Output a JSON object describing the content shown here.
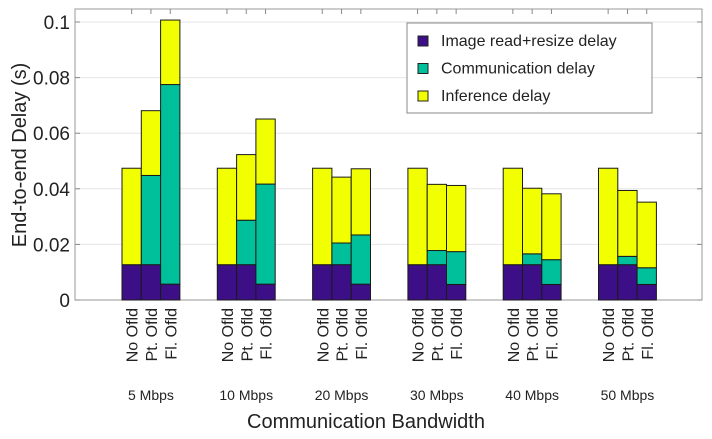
{
  "chart_data": {
    "type": "bar",
    "stacked": true,
    "title": "",
    "xlabel": "Communication Bandwidth",
    "ylabel": "End-to-end Delay (s)",
    "ylim": [
      0,
      0.105
    ],
    "yticks": [
      0,
      0.02,
      0.04,
      0.06,
      0.08,
      0.1
    ],
    "ytick_labels": [
      "0",
      "0.02",
      "0.04",
      "0.06",
      "0.08",
      "0.1"
    ],
    "grid": "horizontal",
    "legend_position": "top-right",
    "groups": [
      "5 Mbps",
      "10 Mbps",
      "20 Mbps",
      "30 Mbps",
      "40 Mbps",
      "50 Mbps"
    ],
    "bar_labels": [
      "No Ofld",
      "Pt. Ofld",
      "Fl. Ofld"
    ],
    "series": [
      {
        "name": "Image read+resize delay",
        "color": "#3c0f87",
        "values": [
          [
            0.0127,
            0.0127,
            0.0057
          ],
          [
            0.0127,
            0.0127,
            0.0057
          ],
          [
            0.0127,
            0.0127,
            0.0057
          ],
          [
            0.0127,
            0.0127,
            0.0056
          ],
          [
            0.0127,
            0.0127,
            0.0056
          ],
          [
            0.0127,
            0.0127,
            0.0056
          ]
        ]
      },
      {
        "name": "Communication delay",
        "color": "#00bf9b",
        "values": [
          [
            0,
            0.0321,
            0.0718
          ],
          [
            0,
            0.016,
            0.036
          ],
          [
            0,
            0.0078,
            0.0177
          ],
          [
            0,
            0.0051,
            0.0118
          ],
          [
            0,
            0.0039,
            0.0089
          ],
          [
            0,
            0.003,
            0.006
          ]
        ]
      },
      {
        "name": "Inference delay",
        "color": "#f2ff00",
        "values": [
          [
            0.0347,
            0.0233,
            0.0232
          ],
          [
            0.0347,
            0.0236,
            0.0234
          ],
          [
            0.0347,
            0.0237,
            0.0238
          ],
          [
            0.0347,
            0.0238,
            0.0238
          ],
          [
            0.0347,
            0.0236,
            0.0237
          ],
          [
            0.0347,
            0.0237,
            0.0236
          ]
        ]
      }
    ]
  }
}
